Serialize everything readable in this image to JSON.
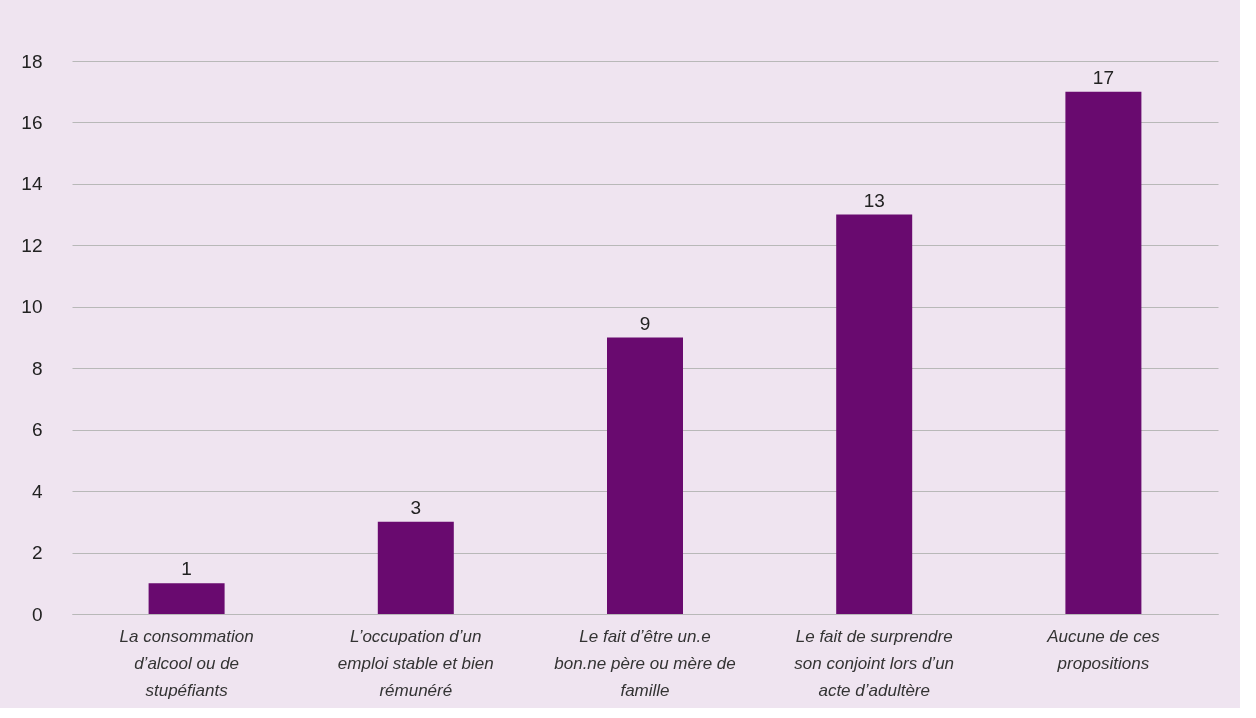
{
  "chart_data": {
    "type": "bar",
    "categories": [
      "La consommation d’alcool ou de stupéfiants",
      "L’occupation d’un emploi stable et bien rémunéré",
      "Le fait d’être un.e bon.ne père ou mère de famille",
      "Le fait de surprendre son conjoint lors d’un acte d’adultère",
      "Aucune de ces propositions"
    ],
    "values": [
      1,
      3,
      9,
      13,
      17
    ],
    "color": "#690a6f",
    "ylim": [
      0,
      18
    ],
    "yticks": [
      0,
      2,
      4,
      6,
      8,
      10,
      12,
      14,
      16,
      18
    ],
    "grid": "y",
    "data_labels": true
  }
}
